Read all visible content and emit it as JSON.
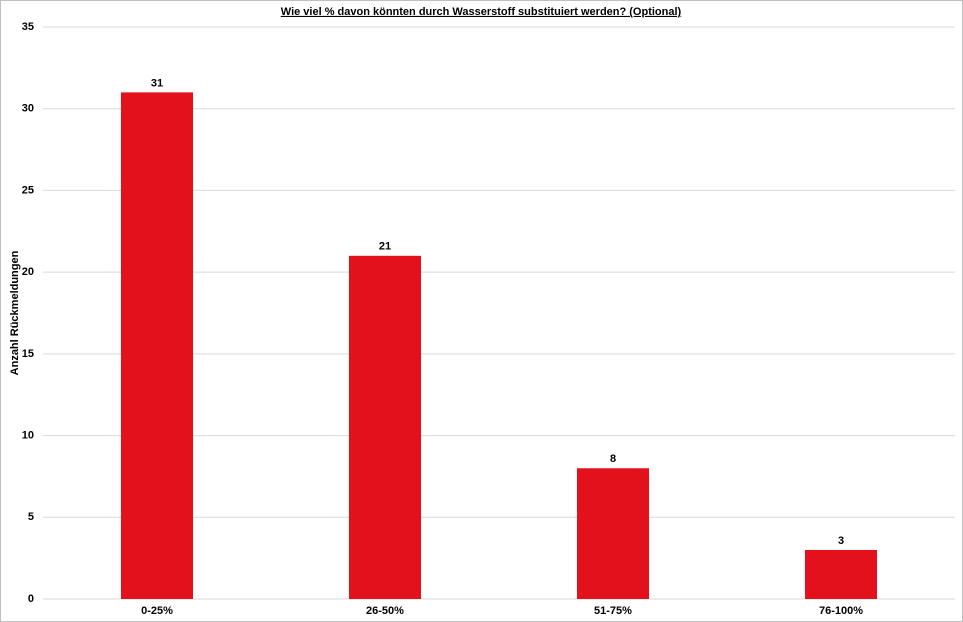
{
  "chart_data": {
    "type": "bar",
    "title": "Wie viel % davon könnten durch Wasserstoff substituiert werden? (Optional)",
    "y_label": "Anzahl Rückmeldungen",
    "categories": [
      "0-25%",
      "26-50%",
      "51-75%",
      "76-100%"
    ],
    "values": [
      31,
      21,
      8,
      3
    ],
    "color": "#e3111b",
    "ylim": [
      0,
      35
    ],
    "yticks": [
      0,
      5,
      10,
      15,
      20,
      25,
      30,
      35
    ],
    "grid": true
  }
}
